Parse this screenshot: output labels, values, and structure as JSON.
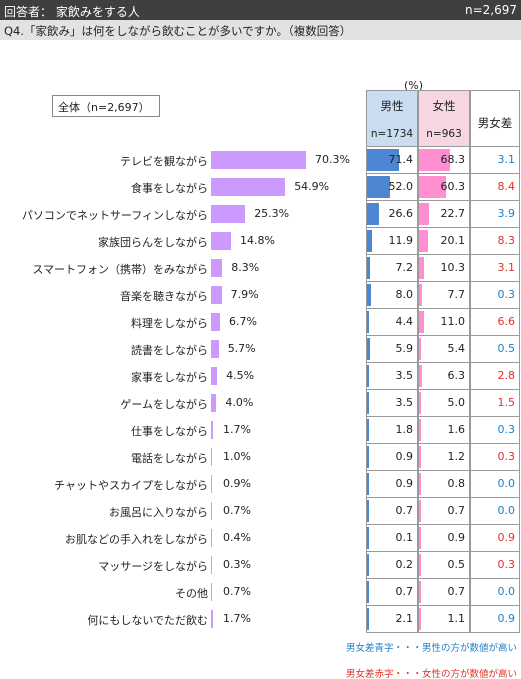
{
  "header": {
    "title": "回答者： 家飲みをする人",
    "count": "n=2,697"
  },
  "question": "Q4.「家飲み」は何をしながら飲むことが多いですか。（複数回答）",
  "total_label": "全体（n=2,697）",
  "unit": "(%)",
  "columns": {
    "male": {
      "title": "男性",
      "n": "n=1734"
    },
    "female": {
      "title": "女性",
      "n": "n=963"
    },
    "diff": {
      "title": "男女差"
    }
  },
  "colors": {
    "total_bar": "#cc99ff",
    "male_bar": "#4d86d1",
    "female_bar": "#ff8fd0",
    "male_higher": "#1f7fc4",
    "female_higher": "#e0302a"
  },
  "notes": {
    "blue": "男女差青字・・・男性の方が数値が高い",
    "red": "男女差赤字・・・女性の方が数値が高い"
  },
  "chart_data": {
    "type": "bar",
    "categories": [
      "テレビを観ながら",
      "食事をしながら",
      "パソコンでネットサーフィンしながら",
      "家族団らんをしながら",
      "スマートフォン（携帯）をみながら",
      "音楽を聴きながら",
      "料理をしながら",
      "読書をしながら",
      "家事をしながら",
      "ゲームをしながら",
      "仕事をしながら",
      "電話をしながら",
      "チャットやスカイプをしながら",
      "お風呂に入りながら",
      "お肌などの手入れをしながら",
      "マッサージをしながら",
      "その他",
      "何にもしないでただ飲む"
    ],
    "series": [
      {
        "name": "全体（n=2,697）",
        "values": [
          70.3,
          54.9,
          25.3,
          14.8,
          8.3,
          7.9,
          6.7,
          5.7,
          4.5,
          4.0,
          1.7,
          1.0,
          0.9,
          0.7,
          0.4,
          0.3,
          0.7,
          1.7
        ]
      },
      {
        "name": "男性",
        "values": [
          71.4,
          52.0,
          26.6,
          11.9,
          7.2,
          8.0,
          4.4,
          5.9,
          3.5,
          3.5,
          1.8,
          0.9,
          0.9,
          0.7,
          0.1,
          0.2,
          0.7,
          2.1
        ]
      },
      {
        "name": "女性",
        "values": [
          68.3,
          60.3,
          22.7,
          20.1,
          10.3,
          7.7,
          11.0,
          5.4,
          6.3,
          5.0,
          1.6,
          1.2,
          0.8,
          0.7,
          0.9,
          0.5,
          0.7,
          1.1
        ]
      }
    ],
    "total_labels": [
      "70.3%",
      "54.9%",
      "25.3%",
      "14.8%",
      "8.3%",
      "7.9%",
      "6.7%",
      "5.7%",
      "4.5%",
      "4.0%",
      "1.7%",
      "1.0%",
      "0.9%",
      "0.7%",
      "0.4%",
      "0.3%",
      "0.7%",
      "1.7%"
    ],
    "male_labels": [
      "71.4",
      "52.0",
      "26.6",
      "11.9",
      "7.2",
      "8.0",
      "4.4",
      "5.9",
      "3.5",
      "3.5",
      "1.8",
      "0.9",
      "0.9",
      "0.7",
      "0.1",
      "0.2",
      "0.7",
      "2.1"
    ],
    "female_labels": [
      "68.3",
      "60.3",
      "22.7",
      "20.1",
      "10.3",
      "7.7",
      "11.0",
      "5.4",
      "6.3",
      "5.0",
      "1.6",
      "1.2",
      "0.8",
      "0.7",
      "0.9",
      "0.5",
      "0.7",
      "1.1"
    ],
    "diff_labels": [
      "3.1",
      "8.4",
      "3.9",
      "8.3",
      "3.1",
      "0.3",
      "6.6",
      "0.5",
      "2.8",
      "1.5",
      "0.3",
      "0.3",
      "0.0",
      "0.0",
      "0.9",
      "0.3",
      "0.0",
      "0.9"
    ],
    "diff_higher": [
      "male",
      "female",
      "male",
      "female",
      "female",
      "male",
      "female",
      "male",
      "female",
      "female",
      "male",
      "female",
      "male",
      "male",
      "female",
      "female",
      "male",
      "male"
    ],
    "ylim": [
      0,
      100
    ]
  }
}
